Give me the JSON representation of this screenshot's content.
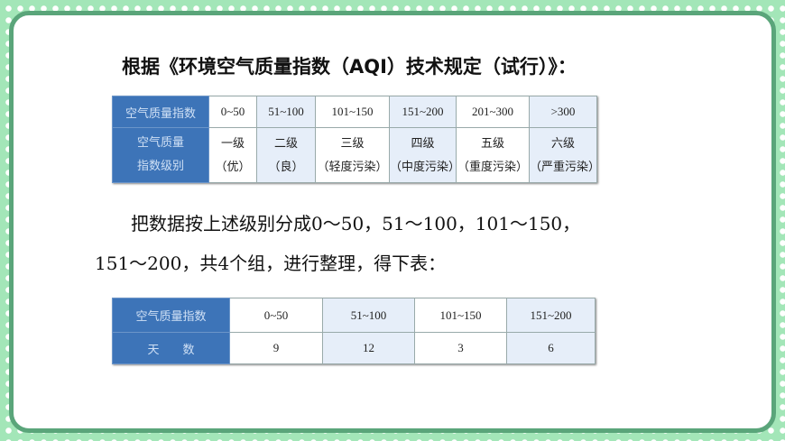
{
  "title": "根据《环境空气质量指数（AQI）技术规定（试行）》：",
  "table1": {
    "row1_header": "空气质量指数",
    "ranges": [
      "0~50",
      "51~100",
      "101~150",
      "151~200",
      "201~300",
      ">300"
    ],
    "row2_header_line1": "空气质量",
    "row2_header_line2": "指数级别",
    "levels": [
      {
        "level": "一级",
        "desc": "（优）"
      },
      {
        "level": "二级",
        "desc": "（良）"
      },
      {
        "level": "三级",
        "desc": "（轻度污染）"
      },
      {
        "level": "四级",
        "desc": "（中度污染）"
      },
      {
        "level": "五级",
        "desc": "（重度污染）"
      },
      {
        "level": "六级",
        "desc": "（严重污染）"
      }
    ]
  },
  "paragraph": {
    "line1": "把数据按上述级别分成0～50，51～100，101～150，",
    "line2": "151～200，共4个组，进行整理，得下表："
  },
  "table2": {
    "row1_header": "空气质量指数",
    "ranges": [
      "0~50",
      "51~100",
      "101~150",
      "151~200"
    ],
    "row2_header": "天　　数",
    "days": [
      "9",
      "12",
      "3",
      "6"
    ]
  },
  "colors": {
    "background": "#a3e6b8",
    "frame": "#5aa57a",
    "header_cell": "#3d74b8",
    "alt_cell": "#e6eef9"
  }
}
